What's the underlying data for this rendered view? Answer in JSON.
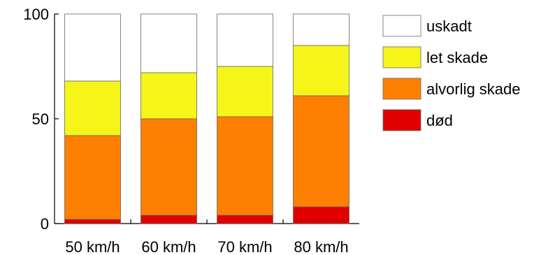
{
  "chart_data": {
    "type": "bar",
    "stacked": true,
    "categories": [
      "50 km/h",
      "60 km/h",
      "70 km/h",
      "80 km/h"
    ],
    "series": [
      {
        "name": "død",
        "color": "#e00000",
        "values": [
          2,
          4,
          4,
          8
        ]
      },
      {
        "name": "alvorlig skade",
        "color": "#ff8000",
        "values": [
          40,
          46,
          47,
          53
        ]
      },
      {
        "name": "let skade",
        "color": "#f5f519",
        "values": [
          26,
          22,
          24,
          24
        ]
      },
      {
        "name": "uskadt",
        "color": "#ffffff",
        "values": [
          32,
          28,
          25,
          15
        ]
      }
    ],
    "legend_order": [
      "uskadt",
      "let skade",
      "alvorlig skade",
      "død"
    ],
    "yticks": [
      "0",
      "50",
      "100"
    ],
    "ylim": [
      0,
      100
    ],
    "title": "",
    "xlabel": "",
    "ylabel": "",
    "grid": false,
    "legend_position": "right"
  }
}
